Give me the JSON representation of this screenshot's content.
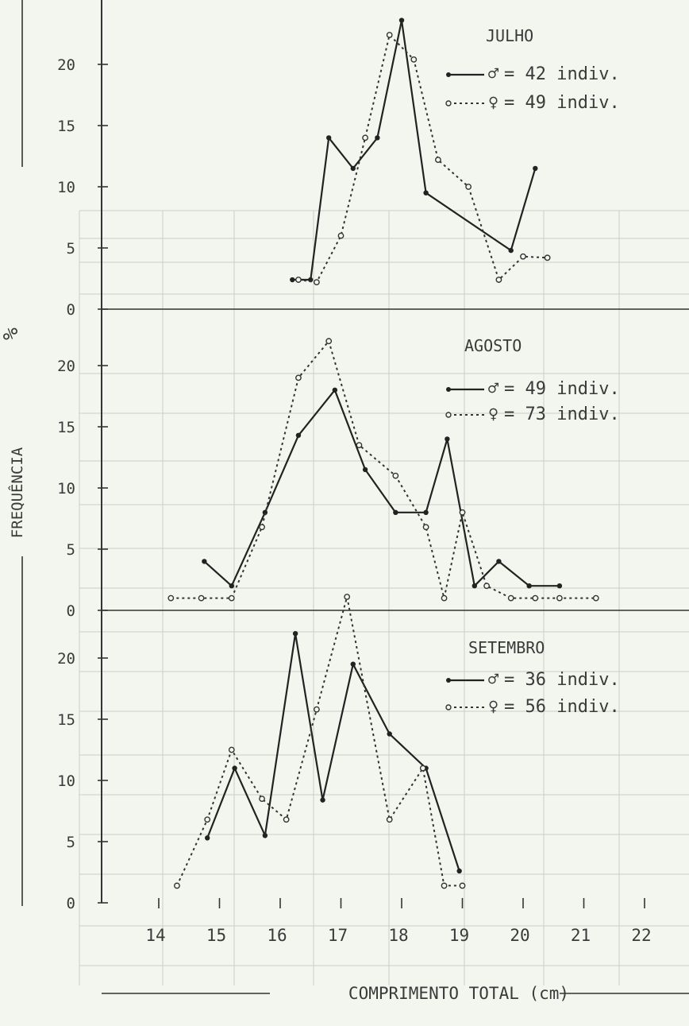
{
  "figure": {
    "ylabel": "FREQUÊNCIA",
    "ylabel_unit": "%",
    "xlabel": "COMPRIMENTO TOTAL (cm)"
  },
  "chart_data": [
    {
      "type": "line",
      "title": "JULHO",
      "xlim": [
        13.5,
        22.5
      ],
      "ylim": [
        0,
        25
      ],
      "yticks": [
        0,
        5,
        10,
        15,
        20
      ],
      "series": [
        {
          "name": "♂ = 42 indiv.",
          "symbol": "♂",
          "label": "= 42 indiv.",
          "x": [
            16.2,
            16.5,
            16.8,
            17.2,
            17.6,
            18.0,
            18.4,
            19.8,
            20.2
          ],
          "y": [
            2.4,
            2.4,
            14.0,
            11.5,
            14.0,
            23.6,
            9.5,
            4.8,
            11.5
          ]
        },
        {
          "name": "♀ = 49 indiv.",
          "symbol": "♀",
          "label": "= 49 indiv.",
          "x": [
            16.3,
            16.6,
            17.0,
            17.4,
            17.8,
            18.2,
            18.6,
            19.1,
            19.6,
            20.0,
            20.4
          ],
          "y": [
            2.4,
            2.2,
            6.0,
            14.0,
            22.4,
            20.4,
            12.2,
            10.0,
            2.4,
            4.3,
            4.2
          ]
        }
      ]
    },
    {
      "type": "line",
      "title": "AGOSTO",
      "xlim": [
        13.5,
        22.5
      ],
      "ylim": [
        0,
        25
      ],
      "yticks": [
        0,
        5,
        10,
        15,
        20
      ],
      "series": [
        {
          "name": "♂ = 49 indiv.",
          "symbol": "♂",
          "label": "= 49 indiv.",
          "x": [
            14.75,
            15.2,
            15.75,
            16.3,
            16.9,
            17.4,
            17.9,
            18.4,
            18.75,
            19.2,
            19.6,
            20.1,
            20.6
          ],
          "y": [
            4.0,
            2.0,
            8.0,
            14.3,
            18.0,
            11.5,
            8.0,
            8.0,
            14.0,
            2.0,
            4.0,
            2.0,
            2.0
          ]
        },
        {
          "name": "♀ = 73 indiv.",
          "symbol": "♀",
          "label": "= 73 indiv.",
          "x": [
            14.2,
            14.7,
            15.2,
            15.7,
            16.3,
            16.8,
            17.3,
            17.9,
            18.4,
            18.7,
            19.0,
            19.4,
            19.8,
            20.2,
            20.6,
            21.2
          ],
          "y": [
            1.0,
            1.0,
            1.0,
            6.8,
            19.0,
            22.0,
            13.5,
            11.0,
            6.8,
            1.0,
            8.0,
            2.0,
            1.0,
            1.0,
            1.0,
            1.0
          ]
        }
      ]
    },
    {
      "type": "line",
      "title": "SETEMBRO",
      "xlim": [
        13.5,
        22.5
      ],
      "ylim": [
        0,
        25
      ],
      "yticks": [
        0,
        5,
        10,
        15,
        20
      ],
      "series": [
        {
          "name": "♂ = 36 indiv.",
          "symbol": "♂",
          "label": "= 36 indiv.",
          "x": [
            14.8,
            15.25,
            15.75,
            16.25,
            16.7,
            17.2,
            17.8,
            18.4,
            18.95
          ],
          "y": [
            5.3,
            11.0,
            5.5,
            22.0,
            8.4,
            19.5,
            13.8,
            11.0,
            2.6
          ]
        },
        {
          "name": "♀ = 56 indiv.",
          "symbol": "♀",
          "label": "= 56 indiv.",
          "x": [
            14.3,
            14.8,
            15.2,
            15.7,
            16.1,
            16.6,
            17.1,
            17.8,
            18.35,
            18.7,
            19.0
          ],
          "y": [
            1.4,
            6.8,
            12.5,
            8.5,
            6.8,
            15.8,
            25.0,
            6.8,
            11.0,
            1.4,
            1.4
          ]
        }
      ]
    }
  ]
}
